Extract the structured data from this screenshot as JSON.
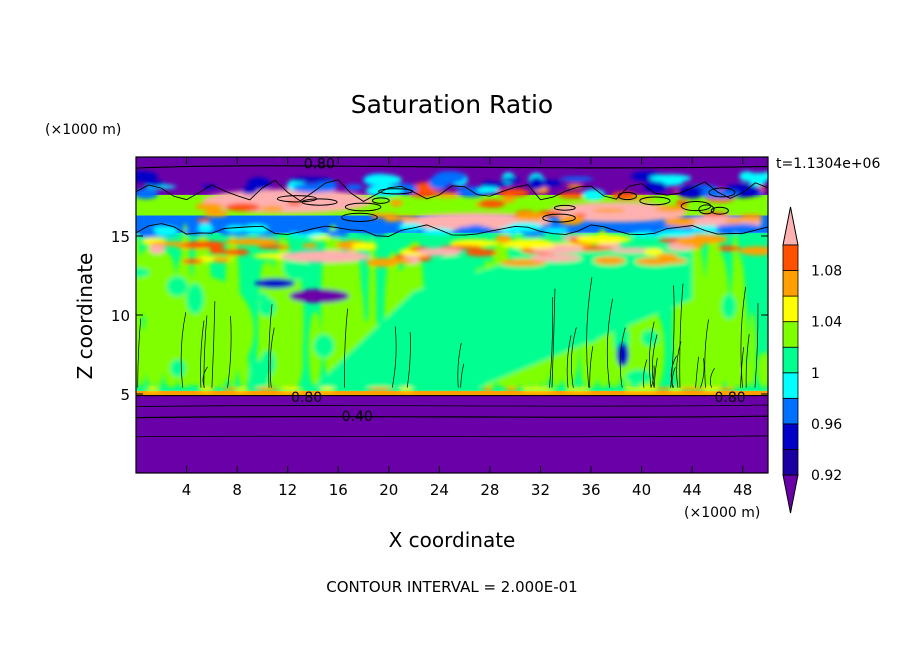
{
  "chart_data": {
    "type": "heatmap",
    "title": "Saturation Ratio",
    "xlabel": "X coordinate",
    "ylabel": "Z coordinate",
    "x_unit": "(×1000 m)",
    "y_unit": "(×1000 m)",
    "time_label": "t=1.1304e+06",
    "footer": "CONTOUR INTERVAL = 2.000E-01",
    "xlim": [
      0,
      50
    ],
    "ylim": [
      0,
      20
    ],
    "x_ticks": [
      4,
      8,
      12,
      16,
      20,
      24,
      28,
      32,
      36,
      40,
      44,
      48
    ],
    "y_ticks": [
      5,
      10,
      15
    ],
    "colorbar": {
      "levels": [
        0.92,
        0.94,
        0.96,
        0.98,
        1.0,
        1.02,
        1.04,
        1.06,
        1.08,
        1.1
      ],
      "tick_labels": [
        {
          "value": 0.92,
          "text": "0.92"
        },
        {
          "value": 0.96,
          "text": "0.96"
        },
        {
          "value": 1.0,
          "text": "1"
        },
        {
          "value": 1.04,
          "text": "1.04"
        },
        {
          "value": 1.08,
          "text": "1.08"
        }
      ],
      "colors": [
        "#6a00a8",
        "#1a00a0",
        "#0000c8",
        "#0070ff",
        "#00ffff",
        "#00ff90",
        "#80ff00",
        "#ffff00",
        "#ffa000",
        "#ff5000",
        "#e00000",
        "#ffb0b0"
      ]
    },
    "contour_labels": [
      {
        "x": 14.5,
        "z": 19.6,
        "text": "0.80"
      },
      {
        "x": 13.5,
        "z": 4.8,
        "text": "0.80"
      },
      {
        "x": 17.5,
        "z": 3.6,
        "text": "0.40"
      },
      {
        "x": 47.0,
        "z": 4.8,
        "text": "0.80"
      }
    ],
    "regions": [
      {
        "x0": 0,
        "x1": 50,
        "z0": 0,
        "z1": 2.5,
        "level": 0
      },
      {
        "x0": 0,
        "x1": 50,
        "z0": 2.5,
        "z1": 4.9,
        "level": 0
      },
      {
        "x0": 0,
        "x1": 50,
        "z0": 4.9,
        "z1": 5.2,
        "level": 8
      },
      {
        "x0": 0,
        "x1": 50,
        "z0": 5.2,
        "z1": 15.2,
        "level": 5
      },
      {
        "x0": 0,
        "x1": 50,
        "z0": 15.2,
        "z1": 16.3,
        "level": 3
      },
      {
        "x0": 0,
        "x1": 50,
        "z0": 16.3,
        "z1": 17.6,
        "level": 6
      },
      {
        "x0": 0,
        "x1": 50,
        "z0": 17.6,
        "z1": 20,
        "level": 0
      }
    ]
  }
}
